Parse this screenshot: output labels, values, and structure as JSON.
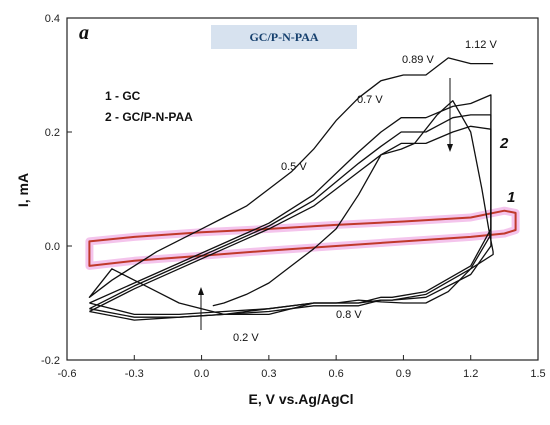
{
  "chart_data": {
    "type": "line",
    "panel_label": "a",
    "title": "GC/P-N-PAA",
    "xlabel": "E, V vs.Ag/AgCl",
    "ylabel": "I, mA",
    "xlim": [
      -0.6,
      1.5
    ],
    "ylim": [
      -0.2,
      0.4
    ],
    "xticks": [
      "-0.6",
      "-0.3",
      "0.0",
      "0.3",
      "0.6",
      "0.9",
      "1.2",
      "1.5"
    ],
    "yticks": [
      "-0.2",
      "0.0",
      "0.2",
      "0.4"
    ],
    "legend": [
      "1 - GC",
      "2 - GC/P-N-PAA"
    ],
    "curve_labels": [
      "1",
      "2"
    ],
    "annotations": [
      "0.2 V",
      "0.5 V",
      "0.7 V",
      "0.8 V",
      "0.89 V",
      "1.12 V"
    ],
    "colors": {
      "gc_line": "#c0392b",
      "gc_halo": "#f4c4ec",
      "polymer_line": "#111111",
      "title_box": "#d7e2ef",
      "title_text": "#16406e"
    },
    "series": [
      {
        "name": "1",
        "x": [
          -0.5,
          -0.3,
          0.0,
          0.3,
          0.6,
          0.9,
          1.2,
          1.35,
          1.4,
          1.4,
          1.35,
          1.2,
          0.9,
          0.6,
          0.3,
          0.0,
          -0.3,
          -0.5,
          -0.5
        ],
        "y": [
          -0.035,
          -0.026,
          -0.017,
          -0.008,
          0.0,
          0.008,
          0.016,
          0.022,
          0.028,
          0.058,
          0.062,
          0.05,
          0.043,
          0.037,
          0.03,
          0.024,
          0.016,
          0.008,
          -0.035
        ]
      },
      {
        "name": "2 (cycle 1)",
        "x": [
          0.05,
          0.1,
          0.2,
          0.3,
          0.4,
          0.5,
          0.6,
          0.7,
          0.8,
          0.89,
          0.95,
          1.05,
          1.12,
          1.2,
          1.25,
          1.28,
          1.3,
          1.3,
          1.2,
          1.1,
          1.0,
          0.9,
          0.8,
          0.7,
          0.6,
          0.5,
          0.4,
          0.3,
          0.2,
          0.1,
          0.0,
          -0.1,
          -0.2,
          -0.3,
          -0.4,
          -0.5,
          -0.5,
          -0.4,
          -0.3,
          -0.2,
          -0.1,
          0.0,
          0.1,
          0.2,
          0.3,
          0.4,
          0.5,
          0.6,
          0.7,
          0.8,
          0.9,
          1.0,
          1.1,
          1.2,
          1.3
        ],
        "y": [
          -0.105,
          -0.1,
          -0.085,
          -0.065,
          -0.035,
          -0.005,
          0.03,
          0.09,
          0.16,
          0.17,
          0.18,
          0.23,
          0.255,
          0.2,
          0.1,
          0.03,
          -0.01,
          -0.015,
          -0.04,
          -0.08,
          -0.1,
          -0.1,
          -0.098,
          -0.095,
          -0.1,
          -0.1,
          -0.11,
          -0.12,
          -0.12,
          -0.12,
          -0.11,
          -0.1,
          -0.08,
          -0.06,
          -0.04,
          -0.09,
          -0.09,
          -0.06,
          -0.035,
          -0.01,
          0.01,
          0.03,
          0.05,
          0.07,
          0.1,
          0.13,
          0.17,
          0.22,
          0.26,
          0.29,
          0.3,
          0.3,
          0.33,
          0.32,
          0.32
        ]
      },
      {
        "name": "2 (cycle 2)",
        "x": [
          -0.5,
          -0.3,
          -0.1,
          0.1,
          0.3,
          0.5,
          0.7,
          0.8,
          0.89,
          1.0,
          1.12,
          1.2,
          1.29,
          1.29,
          1.2,
          1.0,
          0.85,
          0.8,
          0.7,
          0.5,
          0.3,
          0.1,
          -0.1,
          -0.3,
          -0.5
        ],
        "y": [
          -0.1,
          -0.065,
          -0.03,
          0.005,
          0.04,
          0.09,
          0.165,
          0.2,
          0.225,
          0.225,
          0.245,
          0.25,
          0.265,
          0.0,
          -0.05,
          -0.09,
          -0.095,
          -0.095,
          -0.1,
          -0.1,
          -0.11,
          -0.115,
          -0.12,
          -0.12,
          -0.1
        ]
      },
      {
        "name": "2 (cycle 3)",
        "x": [
          -0.5,
          -0.3,
          -0.1,
          0.1,
          0.3,
          0.5,
          0.7,
          0.8,
          0.89,
          1.0,
          1.12,
          1.2,
          1.29,
          1.29,
          1.2,
          1.0,
          0.85,
          0.8,
          0.7,
          0.5,
          0.3,
          0.1,
          -0.1,
          -0.3,
          -0.5
        ],
        "y": [
          -0.11,
          -0.07,
          -0.035,
          0.0,
          0.035,
          0.08,
          0.145,
          0.175,
          0.2,
          0.2,
          0.225,
          0.23,
          0.23,
          0.02,
          -0.04,
          -0.085,
          -0.095,
          -0.095,
          -0.105,
          -0.105,
          -0.115,
          -0.12,
          -0.125,
          -0.125,
          -0.11
        ]
      },
      {
        "name": "2 (cycle 4)",
        "x": [
          -0.5,
          -0.3,
          -0.1,
          0.1,
          0.3,
          0.5,
          0.7,
          0.8,
          0.89,
          1.0,
          1.12,
          1.2,
          1.29,
          1.29,
          1.2,
          1.0,
          0.85,
          0.8,
          0.7,
          0.5,
          0.3,
          0.1,
          -0.1,
          -0.3,
          -0.5
        ],
        "y": [
          -0.115,
          -0.075,
          -0.04,
          -0.005,
          0.03,
          0.07,
          0.13,
          0.16,
          0.18,
          0.18,
          0.2,
          0.21,
          0.205,
          0.03,
          -0.035,
          -0.08,
          -0.09,
          -0.09,
          -0.1,
          -0.1,
          -0.11,
          -0.12,
          -0.125,
          -0.13,
          -0.115
        ]
      }
    ],
    "grid": false
  }
}
